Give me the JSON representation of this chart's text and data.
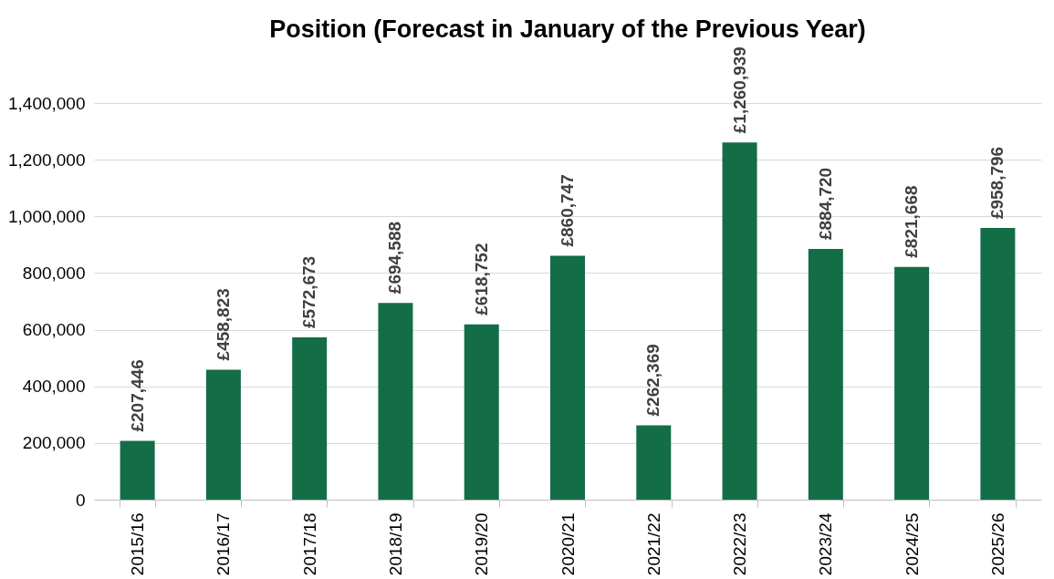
{
  "chart_data": {
    "type": "bar",
    "title": "Position (Forecast in January of the Previous Year)",
    "categories": [
      "2015/16",
      "2016/17",
      "2017/18",
      "2018/19",
      "2019/20",
      "2020/21",
      "2021/22",
      "2022/23",
      "2023/24",
      "2024/25",
      "2025/26"
    ],
    "values": [
      207446,
      458823,
      572673,
      694588,
      618752,
      860747,
      262369,
      1260939,
      884720,
      821668,
      958796
    ],
    "value_labels": [
      "£207,446",
      "£458,823",
      "£572,673",
      "£694,588",
      "£618,752",
      "£860,747",
      "£262,369",
      "£1,260,939",
      "£884,720",
      "£821,668",
      "£958,796"
    ],
    "color": "#136d47",
    "ylim": [
      0,
      1400000
    ],
    "yticks": [
      0,
      {
        "value": 200000,
        "label": "200,000"
      },
      {
        "value": 400000,
        "label": "400,000"
      },
      {
        "value": 600000,
        "label": "600,000"
      },
      {
        "value": 800000,
        "label": "800,000"
      },
      {
        "value": 1000000,
        "label": "1,000,000"
      },
      {
        "value": 1200000,
        "label": "1,200,000"
      },
      {
        "value": 1400000,
        "label": "1,400,000"
      }
    ],
    "grid": "y"
  }
}
